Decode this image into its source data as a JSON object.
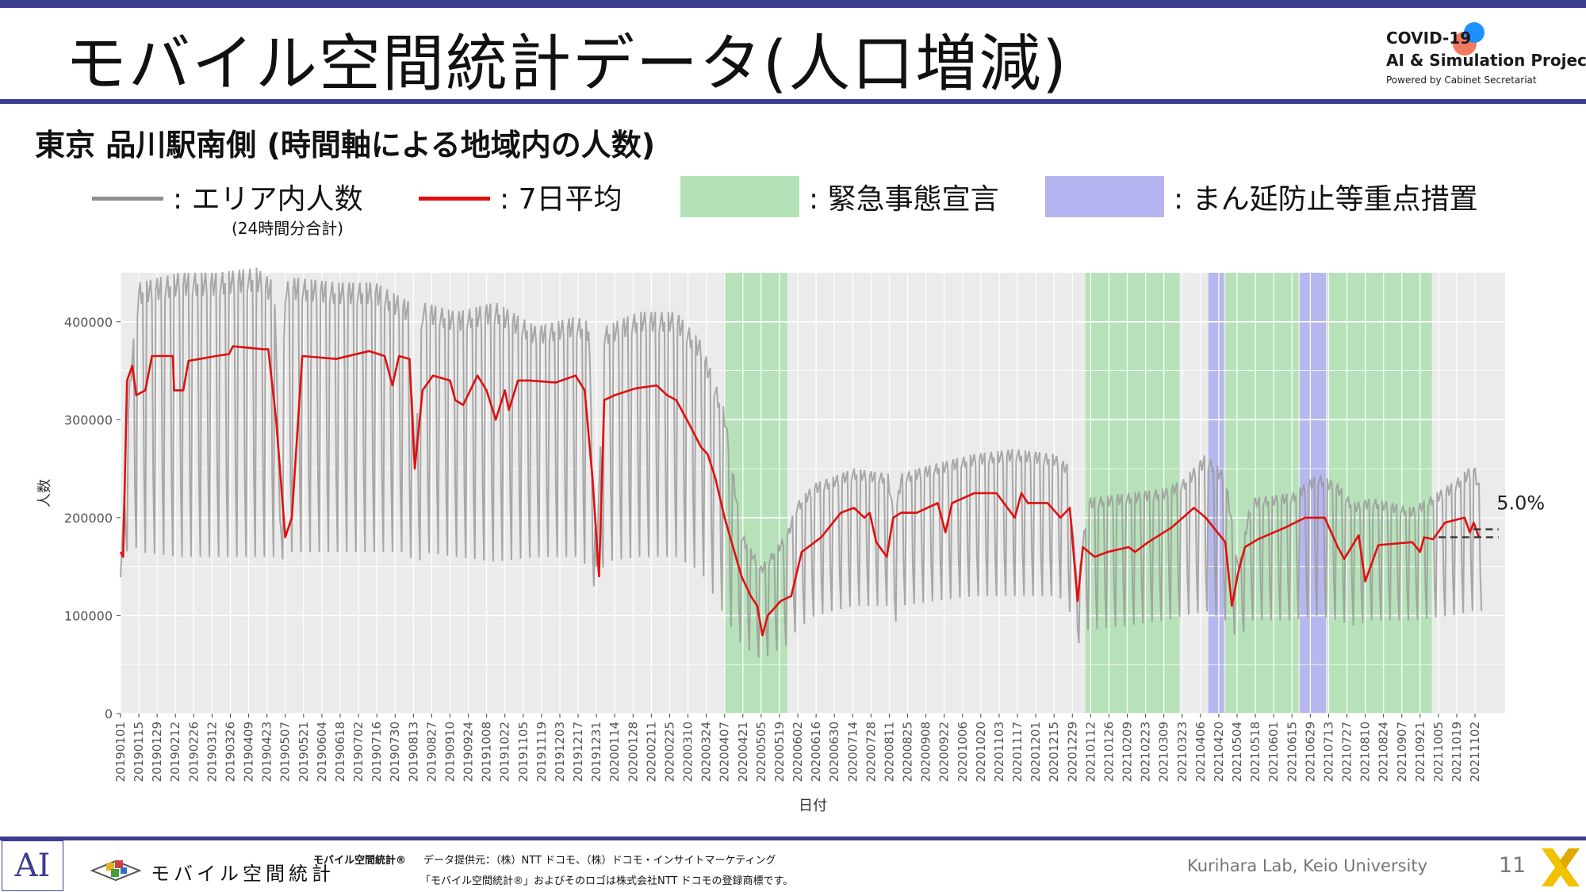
{
  "slide": {
    "title": "モバイル空間統計データ(人口増減)",
    "subtitle": "東京 品川駅南側 (時間軸による地域内の人数)",
    "logo": {
      "line1": "COVID-19",
      "line2": "AI & Simulation Project",
      "line3": "Powered by Cabinet Secretariat",
      "dot_colors": [
        "#1e90ff",
        "#f26a4f"
      ]
    },
    "legend": {
      "area": ": エリア内人数",
      "area_note": "(24時間分合計)",
      "avg": ": 7日平均",
      "emergency": ": 緊急事態宣言",
      "quasi": ": まん延防止等重点措置"
    },
    "footer": {
      "ai_logo": "AI",
      "mobile_stats_logo": "モバイル空間統計",
      "mobile_stats_label": "モバイル空間統計®",
      "data_source": "データ提供元：（株）NTT ドコモ、（株）ドコモ・インサイトマーケティング",
      "trademark": "「モバイル空間統計®」およびそのロゴは株式会社NTT ドコモの登録商標です。",
      "credit": "Kurihara Lab, Keio University",
      "page": "11"
    },
    "colors": {
      "accent": "#3d3d8f",
      "daily_line": "#9b9b9b",
      "avg_line": "#e01010",
      "emergency": "#b4e2b6",
      "quasi": "#b4b4f0",
      "plot_bg": "#ebebeb"
    }
  },
  "chart_data": {
    "type": "line",
    "xlabel": "日付",
    "ylabel": "人数",
    "ylim": [
      0,
      450000
    ],
    "yticks": [
      0,
      100000,
      200000,
      300000,
      400000
    ],
    "ytick_labels": [
      "0",
      "100000",
      "200000",
      "300000",
      "400000"
    ],
    "xlim": [
      "2019-01-01",
      "2021-11-25"
    ],
    "xtick_labels": [
      "20190101",
      "20190115",
      "20190129",
      "20190212",
      "20190226",
      "20190312",
      "20190326",
      "20190409",
      "20190423",
      "20190507",
      "20190521",
      "20190604",
      "20190618",
      "20190702",
      "20190716",
      "20190730",
      "20190813",
      "20190827",
      "20190910",
      "20190924",
      "20191008",
      "20191022",
      "20191105",
      "20191119",
      "20191203",
      "20191217",
      "20191231",
      "20200114",
      "20200128",
      "20200211",
      "20200225",
      "20200310",
      "20200324",
      "20200407",
      "20200421",
      "20200505",
      "20200519",
      "20200602",
      "20200616",
      "20200630",
      "20200714",
      "20200728",
      "20200811",
      "20200825",
      "20200908",
      "20200922",
      "20201006",
      "20201020",
      "20201103",
      "20201117",
      "20201201",
      "20201215",
      "20201229",
      "20210112",
      "20210126",
      "20210209",
      "20210223",
      "20210309",
      "20210323",
      "20210406",
      "20210420",
      "20210504",
      "20210518",
      "20210601",
      "20210615",
      "20210629",
      "20210713",
      "20210727",
      "20210810",
      "20210824",
      "20210907",
      "20210921",
      "20211005",
      "20211019",
      "20211102"
    ],
    "grid": true,
    "annotation": {
      "text": "5.0%",
      "date": "2021-11-10",
      "y": 215000
    },
    "periods": [
      {
        "kind": "emergency",
        "start": "2020-04-07",
        "end": "2020-05-25"
      },
      {
        "kind": "emergency",
        "start": "2021-01-08",
        "end": "2021-03-21"
      },
      {
        "kind": "quasi",
        "start": "2021-04-12",
        "end": "2021-04-24"
      },
      {
        "kind": "emergency",
        "start": "2021-04-25",
        "end": "2021-06-20"
      },
      {
        "kind": "quasi",
        "start": "2021-06-21",
        "end": "2021-07-11"
      },
      {
        "kind": "emergency",
        "start": "2021-07-12",
        "end": "2021-09-30"
      }
    ],
    "series": [
      {
        "name": "エリア内人数",
        "kind": "daily",
        "x": [
          "2019-01-01",
          "2019-01-08",
          "2019-01-15",
          "2019-02-15",
          "2019-03-15",
          "2019-04-15",
          "2019-04-29",
          "2019-05-03",
          "2019-05-07",
          "2019-05-15",
          "2019-06-15",
          "2019-07-15",
          "2019-08-10",
          "2019-08-14",
          "2019-08-20",
          "2019-09-15",
          "2019-10-15",
          "2019-11-15",
          "2019-12-15",
          "2019-12-25",
          "2019-12-31",
          "2020-01-06",
          "2020-02-01",
          "2020-03-01",
          "2020-03-20",
          "2020-04-07",
          "2020-04-20",
          "2020-05-05",
          "2020-05-25",
          "2020-06-01",
          "2020-06-15",
          "2020-07-15",
          "2020-08-10",
          "2020-08-15",
          "2020-08-20",
          "2020-09-15",
          "2020-10-15",
          "2020-11-15",
          "2020-12-15",
          "2020-12-25",
          "2021-01-02",
          "2021-01-10",
          "2021-02-10",
          "2021-03-10",
          "2021-03-25",
          "2021-04-10",
          "2021-04-25",
          "2021-05-05",
          "2021-05-15",
          "2021-06-15",
          "2021-07-05",
          "2021-07-20",
          "2021-08-01",
          "2021-08-15",
          "2021-09-15",
          "2021-10-15",
          "2021-11-01",
          "2021-11-07"
        ],
        "peak": [
          140000,
          340000,
          440000,
          450000,
          450000,
          455000,
          440000,
          200000,
          440000,
          445000,
          440000,
          440000,
          420000,
          260000,
          420000,
          410000,
          420000,
          395000,
          405000,
          400000,
          150000,
          395000,
          410000,
          410000,
          380000,
          310000,
          185000,
          150000,
          185000,
          215000,
          235000,
          250000,
          245000,
          200000,
          245000,
          255000,
          265000,
          270000,
          265000,
          255000,
          130000,
          220000,
          225000,
          230000,
          240000,
          265000,
          245000,
          150000,
          220000,
          225000,
          245000,
          235000,
          215000,
          220000,
          210000,
          235000,
          255000,
          225000
        ],
        "trough": [
          130000,
          180000,
          165000,
          160000,
          160000,
          160000,
          160000,
          150000,
          165000,
          165000,
          165000,
          165000,
          165000,
          140000,
          165000,
          160000,
          155000,
          160000,
          160000,
          150000,
          120000,
          155000,
          160000,
          160000,
          145000,
          100000,
          70000,
          55000,
          70000,
          85000,
          100000,
          110000,
          110000,
          90000,
          110000,
          115000,
          120000,
          120000,
          120000,
          115000,
          70000,
          85000,
          90000,
          95000,
          100000,
          105000,
          95000,
          75000,
          95000,
          95000,
          100000,
          95000,
          90000,
          95000,
          95000,
          100000,
          105000,
          105000
        ]
      },
      {
        "name": "7日平均",
        "kind": "avg",
        "x": [
          "2019-01-01",
          "2019-01-03",
          "2019-01-06",
          "2019-01-10",
          "2019-01-13",
          "2019-01-20",
          "2019-01-25",
          "2019-02-10",
          "2019-02-11",
          "2019-02-18",
          "2019-02-22",
          "2019-03-15",
          "2019-03-25",
          "2019-03-28",
          "2019-04-20",
          "2019-04-24",
          "2019-04-30",
          "2019-05-07",
          "2019-05-12",
          "2019-05-20",
          "2019-06-15",
          "2019-07-10",
          "2019-07-22",
          "2019-07-28",
          "2019-08-02",
          "2019-08-10",
          "2019-08-14",
          "2019-08-20",
          "2019-08-28",
          "2019-09-10",
          "2019-09-14",
          "2019-09-20",
          "2019-10-01",
          "2019-10-08",
          "2019-10-15",
          "2019-10-22",
          "2019-10-25",
          "2019-11-01",
          "2019-11-10",
          "2019-11-30",
          "2019-12-15",
          "2019-12-22",
          "2019-12-28",
          "2020-01-02",
          "2020-01-06",
          "2020-01-14",
          "2020-01-30",
          "2020-02-15",
          "2020-02-23",
          "2020-03-01",
          "2020-03-10",
          "2020-03-20",
          "2020-03-25",
          "2020-03-31",
          "2020-04-07",
          "2020-04-20",
          "2020-04-27",
          "2020-05-02",
          "2020-05-06",
          "2020-05-10",
          "2020-05-20",
          "2020-05-28",
          "2020-06-05",
          "2020-06-20",
          "2020-07-05",
          "2020-07-15",
          "2020-07-23",
          "2020-07-27",
          "2020-08-01",
          "2020-08-09",
          "2020-08-14",
          "2020-08-20",
          "2020-09-01",
          "2020-09-17",
          "2020-09-23",
          "2020-09-28",
          "2020-10-15",
          "2020-11-01",
          "2020-11-15",
          "2020-11-20",
          "2020-11-25",
          "2020-12-10",
          "2020-12-20",
          "2020-12-27",
          "2021-01-02",
          "2021-01-06",
          "2021-01-15",
          "2021-01-25",
          "2021-02-10",
          "2021-02-15",
          "2021-02-25",
          "2021-03-15",
          "2021-04-01",
          "2021-04-10",
          "2021-04-25",
          "2021-04-30",
          "2021-05-05",
          "2021-05-10",
          "2021-05-20",
          "2021-06-10",
          "2021-06-25",
          "2021-07-10",
          "2021-07-20",
          "2021-07-25",
          "2021-08-05",
          "2021-08-10",
          "2021-08-20",
          "2021-09-15",
          "2021-09-21",
          "2021-09-24",
          "2021-10-01",
          "2021-10-10",
          "2021-10-25",
          "2021-10-29",
          "2021-11-01",
          "2021-11-05"
        ],
        "y": [
          165000,
          160000,
          340000,
          355000,
          325000,
          330000,
          365000,
          365000,
          330000,
          330000,
          360000,
          365000,
          367000,
          375000,
          372000,
          372000,
          300000,
          180000,
          200000,
          365000,
          362000,
          370000,
          365000,
          335000,
          365000,
          362000,
          250000,
          330000,
          345000,
          340000,
          320000,
          315000,
          345000,
          330000,
          300000,
          330000,
          310000,
          340000,
          340000,
          338000,
          345000,
          330000,
          240000,
          140000,
          320000,
          325000,
          332000,
          335000,
          325000,
          320000,
          298000,
          272000,
          265000,
          240000,
          200000,
          140000,
          120000,
          110000,
          80000,
          100000,
          115000,
          120000,
          165000,
          180000,
          205000,
          210000,
          200000,
          205000,
          175000,
          160000,
          200000,
          205000,
          205000,
          215000,
          185000,
          215000,
          225000,
          225000,
          200000,
          225000,
          215000,
          215000,
          200000,
          210000,
          115000,
          170000,
          160000,
          165000,
          170000,
          165000,
          175000,
          190000,
          210000,
          200000,
          175000,
          110000,
          145000,
          170000,
          178000,
          190000,
          200000,
          200000,
          170000,
          158000,
          182000,
          135000,
          172000,
          175000,
          165000,
          180000,
          178000,
          195000,
          200000,
          185000,
          195000,
          180000
        ]
      },
      {
        "name": "",
        "kind": "baseline",
        "x": [
          "2021-10-05",
          "2021-11-20"
        ],
        "y": [
          180000,
          180000
        ]
      }
    ]
  }
}
